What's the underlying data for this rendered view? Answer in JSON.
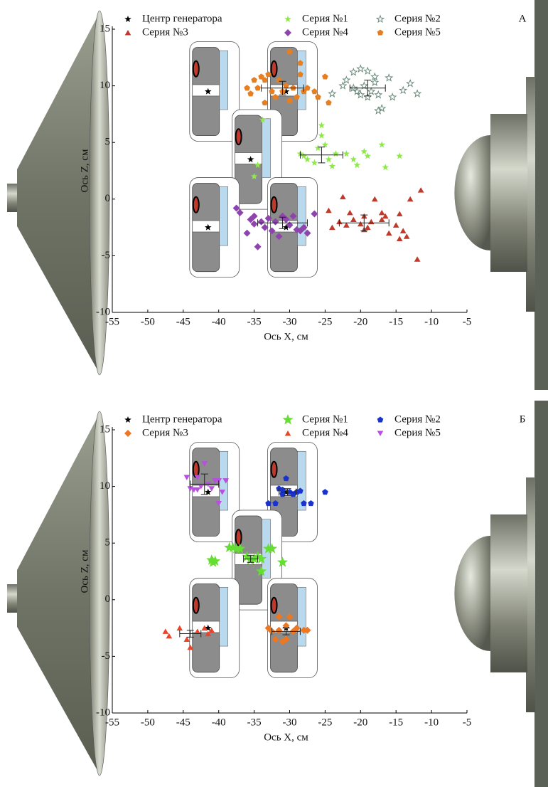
{
  "chart_data": [
    {
      "type": "scatter",
      "panel_label": "А",
      "x_label": "Ось X, см",
      "y_label": "Ось Z, см",
      "xlim": [
        -55,
        -5
      ],
      "ylim": [
        -10,
        15
      ],
      "xticks": [
        -55,
        -50,
        -45,
        -40,
        -35,
        -30,
        -25,
        -20,
        -15,
        -10,
        -5
      ],
      "yticks": [
        -10,
        -5,
        0,
        5,
        10,
        15
      ],
      "series": [
        {
          "name": "Центр генератора",
          "color": "#000000",
          "marker": "star",
          "x": [
            -41.5,
            -30.5,
            -35.5,
            -41.5,
            -30.5
          ],
          "y": [
            9.5,
            9.5,
            3.5,
            -2.5,
            -2.5
          ]
        },
        {
          "name": "Серия №1",
          "color": "#8fe84a",
          "marker": "star",
          "x": [
            -33.8,
            -35,
            -34.5,
            -28.5,
            -27.5,
            -26.5,
            -26,
            -25.5,
            -25,
            -24.5,
            -23.5,
            -22,
            -21,
            -20.5,
            -19.5,
            -19,
            -17,
            -16.5,
            -14.5,
            -25.5,
            -28,
            -24
          ],
          "y": [
            7,
            2,
            3,
            4,
            3.5,
            3.2,
            4.5,
            5.6,
            4.8,
            3.5,
            4,
            4,
            3.5,
            3,
            4.2,
            3.8,
            4.8,
            2.8,
            3.8,
            6.5,
            3.8,
            2.9
          ],
          "errorbar": {
            "x": -25.5,
            "y": 3.9,
            "xerr": 3,
            "yerr": 0.7
          }
        },
        {
          "name": "Серия №2",
          "color": "#6a8a7a",
          "marker": "star-outline",
          "x": [
            -24,
            -22,
            -21,
            -20.5,
            -20,
            -19.5,
            -19,
            -18.5,
            -18,
            -17.5,
            -17,
            -16,
            -15.5,
            -14,
            -13,
            -12,
            -21,
            -18,
            -22.5,
            -17.5,
            -20,
            -19
          ],
          "y": [
            9.3,
            10.5,
            11.2,
            9.5,
            9.2,
            10,
            11.3,
            9.5,
            10.3,
            9.2,
            8,
            10.7,
            9,
            9.6,
            10.2,
            9.3,
            9.8,
            10.8,
            10,
            7.8,
            11.5,
            9
          ],
          "errorbar": {
            "x": -19,
            "y": 9.8,
            "xerr": 2.5,
            "yerr": 0.7
          }
        },
        {
          "name": "Серия №3",
          "color": "#c0392b",
          "marker": "triangle",
          "x": [
            -24.5,
            -24,
            -23,
            -22,
            -21,
            -20,
            -19.5,
            -19,
            -18.5,
            -18,
            -17,
            -16.5,
            -16,
            -15,
            -14.5,
            -14,
            -13.5,
            -13,
            -12,
            -11.5,
            -21.5,
            -19.5,
            -17,
            -22.5,
            -14.5
          ],
          "y": [
            -1,
            -2.5,
            -2,
            -2.3,
            -1.8,
            -2.2,
            -1.5,
            -2.5,
            -2,
            0,
            -1.2,
            -1.5,
            -3,
            -2.3,
            -1.3,
            -2.8,
            -3.3,
            0,
            -5.3,
            0.8,
            -1.2,
            -2.7,
            -1.8,
            0.2,
            -3.5
          ],
          "errorbar": {
            "x": -19.5,
            "y": -2.1,
            "xerr": 3.5,
            "yerr": 0.7
          }
        },
        {
          "name": "Серия №4",
          "color": "#8e44ad",
          "marker": "diamond",
          "x": [
            -37.5,
            -37,
            -36,
            -35.5,
            -35,
            -34.5,
            -34,
            -33.5,
            -33,
            -32.5,
            -32,
            -31,
            -30.5,
            -30,
            -29.5,
            -29,
            -28.5,
            -28,
            -27.5,
            -26.5,
            -35,
            -31.5
          ],
          "y": [
            -0.8,
            -1.2,
            -3,
            -1.8,
            -1.5,
            -4.2,
            -2,
            -2.5,
            -1.7,
            -2.8,
            -2,
            -1.5,
            -1.8,
            -2.3,
            -1.5,
            -2.7,
            -2.8,
            -2.5,
            -3,
            -1.3,
            -2.2,
            -3.3
          ],
          "errorbar": {
            "x": -31,
            "y": -2.1,
            "xerr": 3.5,
            "yerr": 0.5
          }
        },
        {
          "name": "Серия №5",
          "color": "#e67e22",
          "marker": "pentagon",
          "x": [
            -36,
            -35.5,
            -35,
            -34.5,
            -34,
            -33.5,
            -33,
            -32.5,
            -32,
            -31.5,
            -31,
            -30.5,
            -30,
            -29.5,
            -29,
            -28.5,
            -28,
            -27.5,
            -26.5,
            -26,
            -25,
            -24.5,
            -33.5,
            -30,
            -28.5
          ],
          "y": [
            9.8,
            9.3,
            10.5,
            9.8,
            10.8,
            10.5,
            11,
            9.5,
            9,
            10.5,
            9.5,
            10,
            8.7,
            9.8,
            9,
            12,
            9.5,
            9.8,
            9.5,
            9,
            10.8,
            8.5,
            8.5,
            13,
            11
          ],
          "errorbar": {
            "x": -31,
            "y": 9.8,
            "xerr": 3,
            "yerr": 0.6
          }
        }
      ]
    },
    {
      "type": "scatter",
      "panel_label": "Б",
      "x_label": "Ось X, см",
      "y_label": "Ось Z, см",
      "xlim": [
        -55,
        -5
      ],
      "ylim": [
        -10,
        15
      ],
      "xticks": [
        -55,
        -50,
        -45,
        -40,
        -35,
        -30,
        -25,
        -20,
        -15,
        -10,
        -5
      ],
      "yticks": [
        -10,
        -5,
        0,
        5,
        10,
        15
      ],
      "series": [
        {
          "name": "Центр генератора",
          "color": "#000000",
          "marker": "star",
          "x": [
            -41.5,
            -30.5,
            -35.5,
            -41.5,
            -30.5
          ],
          "y": [
            9.5,
            9.5,
            3.5,
            -2.5,
            -2.5
          ]
        },
        {
          "name": "Серия №1",
          "color": "#66dd33",
          "marker": "big-star",
          "x": [
            -38.5,
            -38,
            -37.5,
            -37,
            -40.5,
            -41,
            -40.8,
            -34.5,
            -34,
            -33,
            -32.5,
            -31,
            -36,
            -35.5,
            -34,
            -35
          ],
          "y": [
            4.6,
            4.6,
            4.5,
            4.5,
            3.4,
            3.5,
            3.3,
            3.8,
            2.5,
            4.5,
            4.5,
            3.3,
            3.8,
            3.5,
            3.6,
            3.6
          ],
          "errorbar": {
            "x": -35.5,
            "y": 3.6,
            "xerr": 1,
            "yerr": 0.3
          }
        },
        {
          "name": "Серия №2",
          "color": "#1a33cc",
          "marker": "pentagon",
          "x": [
            -33,
            -32,
            -31.5,
            -31,
            -30.5,
            -30,
            -29,
            -28.5,
            -28,
            -27,
            -25,
            -31,
            -29.5
          ],
          "y": [
            8.5,
            8.5,
            9.8,
            9.3,
            10.7,
            9.5,
            9.5,
            9.6,
            8.5,
            8.5,
            9.5,
            9.7,
            9.3
          ],
          "errorbar": {
            "x": -30.3,
            "y": 9.5,
            "xerr": 1.2,
            "yerr": 0.3
          }
        },
        {
          "name": "Серия №3",
          "color": "#ee7722",
          "marker": "diamond",
          "x": [
            -33,
            -32.5,
            -32,
            -31.5,
            -31,
            -30.5,
            -30,
            -29.5,
            -29,
            -28,
            -27.5,
            -30.5,
            -31.5
          ],
          "y": [
            -2.5,
            -2.8,
            -3.5,
            -2.7,
            -3.7,
            -3.5,
            -1.5,
            -2.8,
            -2.5,
            -2.7,
            -2.7,
            -2.3,
            -1.5
          ],
          "errorbar": {
            "x": -30.5,
            "y": -2.8,
            "xerr": 2,
            "yerr": 0.3
          }
        },
        {
          "name": "Серия №4",
          "color": "#e8452a",
          "marker": "triangle",
          "x": [
            -47.5,
            -47,
            -45.5,
            -44,
            -43,
            -42,
            -41.5,
            -41,
            -44.5
          ],
          "y": [
            -2.8,
            -3.2,
            -2.5,
            -4.2,
            -2.8,
            -2.5,
            -3,
            -2.7,
            -3.5
          ],
          "errorbar": {
            "x": -44,
            "y": -3,
            "xerr": 1.5,
            "yerr": 0.3
          }
        },
        {
          "name": "Серия №5",
          "color": "#b84fe0",
          "marker": "triangle-down",
          "x": [
            -44.5,
            -44,
            -43.5,
            -43,
            -42.5,
            -42,
            -41.5,
            -41,
            -40.5,
            -40,
            -39.5,
            -39,
            -43,
            -40
          ],
          "y": [
            10.8,
            9.8,
            9.7,
            10.8,
            10,
            12,
            10.2,
            9.8,
            10.5,
            10.5,
            9.5,
            10.5,
            9.7,
            8.5
          ],
          "errorbar": {
            "x": -42,
            "y": 10.2,
            "xerr": 2,
            "yerr": 0.9
          }
        }
      ]
    }
  ]
}
